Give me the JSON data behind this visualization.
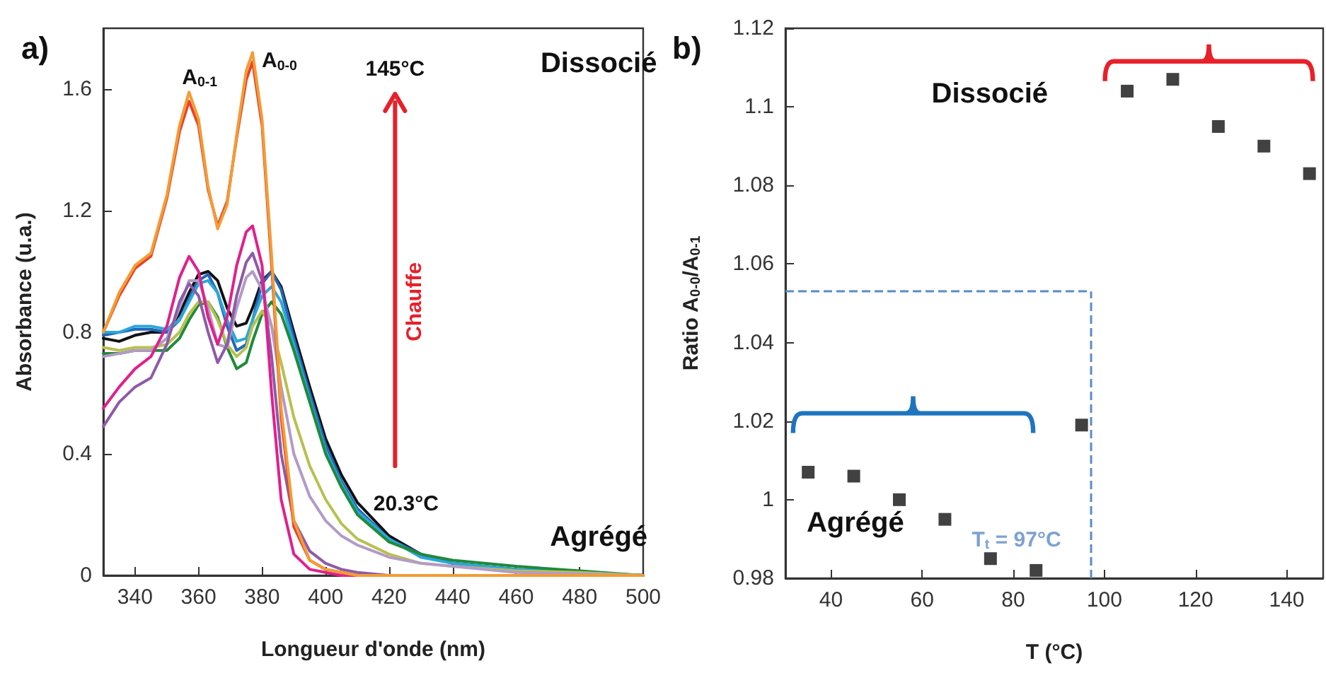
{
  "chart_data": [
    {
      "type": "line",
      "title": "a)",
      "xlabel": "Longueur d'onde (nm)",
      "ylabel": "Absorbance (u.a.)",
      "x": [
        330,
        335,
        340,
        345,
        350,
        354,
        357,
        360,
        363,
        366,
        369,
        372,
        375,
        377,
        380,
        383,
        386,
        390,
        395,
        400,
        405,
        410,
        420,
        430,
        440,
        460,
        480,
        500
      ],
      "xlim": [
        330,
        500
      ],
      "xticks": [
        340,
        360,
        380,
        400,
        420,
        440,
        460,
        480,
        500
      ],
      "ylim": [
        0,
        1.8
      ],
      "yticks": [
        0,
        0.4,
        0.8,
        1.2,
        1.6
      ],
      "marker": "none",
      "line_style": "solid",
      "series": [
        {
          "color": "#111111",
          "values": [
            0.78,
            0.77,
            0.79,
            0.8,
            0.8,
            0.86,
            0.93,
            0.99,
            1.0,
            0.97,
            0.88,
            0.82,
            0.83,
            0.88,
            0.97,
            1.0,
            0.95,
            0.8,
            0.62,
            0.45,
            0.33,
            0.24,
            0.13,
            0.07,
            0.04,
            0.02,
            0.01,
            0
          ]
        },
        {
          "color": "#2266b8",
          "values": [
            0.79,
            0.8,
            0.81,
            0.81,
            0.8,
            0.84,
            0.91,
            0.97,
            0.99,
            0.93,
            0.82,
            0.74,
            0.76,
            0.84,
            0.96,
            1.0,
            0.94,
            0.78,
            0.6,
            0.43,
            0.31,
            0.22,
            0.12,
            0.07,
            0.04,
            0.02,
            0.01,
            0
          ]
        },
        {
          "color": "#2aa8d8",
          "values": [
            0.8,
            0.8,
            0.82,
            0.82,
            0.81,
            0.84,
            0.9,
            0.96,
            0.97,
            0.93,
            0.84,
            0.77,
            0.78,
            0.84,
            0.92,
            0.95,
            0.9,
            0.76,
            0.58,
            0.41,
            0.3,
            0.21,
            0.12,
            0.06,
            0.04,
            0.02,
            0.01,
            0
          ]
        },
        {
          "color": "#1f8a3a",
          "values": [
            0.73,
            0.73,
            0.74,
            0.74,
            0.74,
            0.78,
            0.84,
            0.89,
            0.9,
            0.85,
            0.75,
            0.68,
            0.7,
            0.77,
            0.86,
            0.9,
            0.86,
            0.74,
            0.57,
            0.4,
            0.29,
            0.2,
            0.11,
            0.07,
            0.05,
            0.03,
            0.015,
            0
          ]
        },
        {
          "color": "#b8c050",
          "values": [
            0.75,
            0.74,
            0.75,
            0.75,
            0.76,
            0.8,
            0.86,
            0.9,
            0.9,
            0.84,
            0.76,
            0.72,
            0.75,
            0.82,
            0.87,
            0.82,
            0.7,
            0.52,
            0.36,
            0.25,
            0.17,
            0.12,
            0.07,
            0.04,
            0.03,
            0.015,
            0.01,
            0
          ]
        },
        {
          "color": "#b49ac8",
          "values": [
            0.72,
            0.73,
            0.74,
            0.74,
            0.78,
            0.88,
            0.97,
            0.97,
            0.88,
            0.76,
            0.75,
            0.88,
            0.98,
            1.0,
            0.94,
            0.82,
            0.62,
            0.4,
            0.26,
            0.18,
            0.13,
            0.1,
            0.06,
            0.04,
            0.03,
            0.01,
            0.005,
            0
          ]
        },
        {
          "color": "#8e5aa8",
          "values": [
            0.49,
            0.57,
            0.62,
            0.65,
            0.76,
            0.9,
            0.96,
            0.92,
            0.8,
            0.7,
            0.76,
            0.92,
            1.03,
            1.06,
            0.97,
            0.72,
            0.4,
            0.18,
            0.08,
            0.04,
            0.02,
            0.01,
            0,
            0,
            0,
            0,
            0,
            0
          ]
        },
        {
          "color": "#e0208c",
          "values": [
            0.55,
            0.62,
            0.68,
            0.72,
            0.82,
            0.98,
            1.05,
            1.0,
            0.85,
            0.76,
            0.85,
            1.02,
            1.13,
            1.15,
            1.02,
            0.6,
            0.25,
            0.07,
            0.02,
            0.01,
            0,
            0,
            0,
            null,
            null,
            null,
            null,
            null
          ]
        },
        {
          "color": "#e8412c",
          "values": [
            0.8,
            0.92,
            1.01,
            1.05,
            1.24,
            1.46,
            1.56,
            1.48,
            1.27,
            1.15,
            1.23,
            1.44,
            1.63,
            1.69,
            1.48,
            1.02,
            0.52,
            0.16,
            0.05,
            0.02,
            0.01,
            0,
            0,
            null,
            null,
            null,
            null,
            null
          ]
        },
        {
          "color": "#f39c34",
          "values": [
            0.8,
            0.93,
            1.02,
            1.06,
            1.25,
            1.48,
            1.59,
            1.5,
            1.28,
            1.14,
            1.22,
            1.45,
            1.66,
            1.72,
            1.5,
            1.05,
            0.55,
            0.18,
            0.05,
            0.02,
            0.01,
            0,
            0,
            0,
            0,
            0,
            0,
            0
          ]
        }
      ],
      "annotations": [
        "A$_{0-1}$",
        "A$_{0-0}$",
        "Dissocié",
        "145°C",
        "Chauffe",
        "20.3°C",
        "Agrégé"
      ]
    },
    {
      "type": "scatter",
      "title": "b)",
      "xlabel": "T (°C)",
      "ylabel": "Ratio A$_{0-0}$/A$_{0-1}$",
      "x": [
        35,
        45,
        55,
        65,
        75,
        85,
        95,
        105,
        115,
        125,
        135,
        145
      ],
      "values": [
        1.007,
        1.006,
        1.0,
        0.995,
        0.985,
        0.982,
        1.019,
        1.104,
        1.107,
        1.095,
        1.09,
        1.083
      ],
      "color": "#111111",
      "marker": "square",
      "xlim": [
        30,
        148
      ],
      "xticks": [
        40,
        60,
        80,
        100,
        120,
        140
      ],
      "ylim": [
        0.98,
        1.12
      ],
      "yticks": [
        0.98,
        1,
        1.02,
        1.04,
        1.06,
        1.08,
        1.1,
        1.12
      ],
      "ref_lines": [
        {
          "axis": "x",
          "value": 97,
          "label": "T$_{t}$ = 97°C",
          "color": "#5b8bc8",
          "line_style": "dashed"
        },
        {
          "axis": "y",
          "value": 1.053,
          "label": null,
          "color": "#5b8bc8",
          "line_style": "dashed"
        }
      ],
      "annotations": [
        "Dissocié",
        "Agrégé"
      ]
    }
  ]
}
